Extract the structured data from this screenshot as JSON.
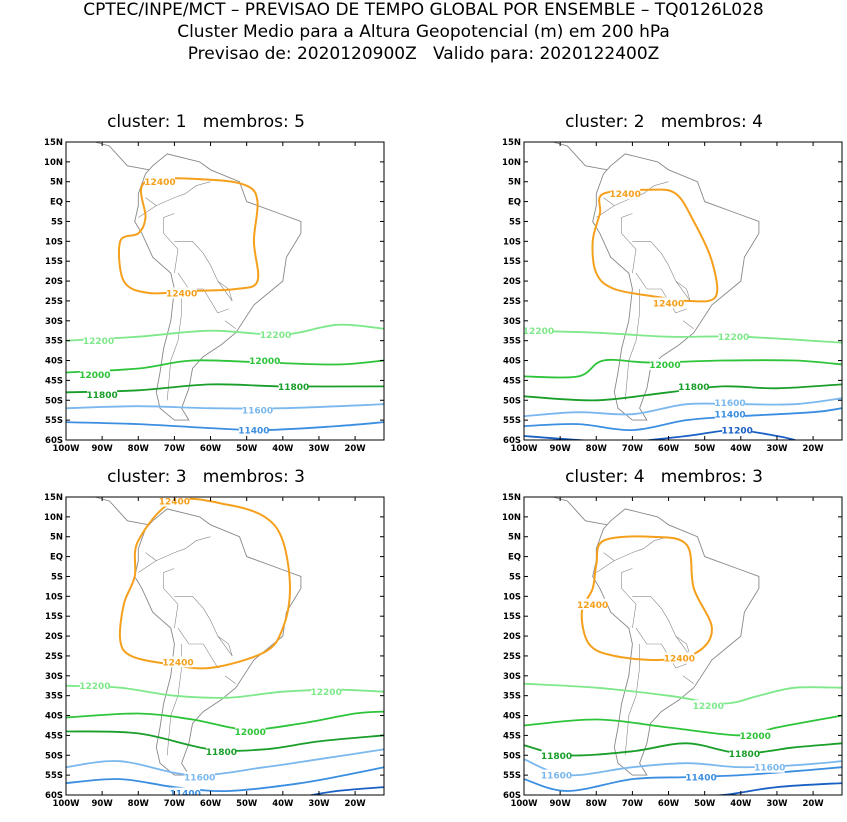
{
  "header": {
    "line1": "CPTEC/INPE/MCT – PREVISAO DE TEMPO GLOBAL POR ENSEMBLE – TQ0126L028",
    "line2": "Cluster Medio para a Altura Geopotencial (m) em 200 hPa",
    "line3": "Previsao de: 2020120900Z   Valido para: 2020122400Z"
  },
  "axes": {
    "lat_labels": [
      "15N",
      "10N",
      "5N",
      "EQ",
      "5S",
      "10S",
      "15S",
      "20S",
      "25S",
      "30S",
      "35S",
      "40S",
      "45S",
      "50S",
      "55S",
      "60S"
    ],
    "lon_labels": [
      "100W",
      "90W",
      "80W",
      "70W",
      "60W",
      "50W",
      "40W",
      "30W",
      "20W"
    ]
  },
  "colors": {
    "c12400": "#f5a01c",
    "c12200": "#7ee88a",
    "c12000": "#2ec43a",
    "c11800": "#1a9e2a",
    "c11600": "#7ab8ee",
    "c11400": "#3b8ee0",
    "c11200": "#1a5fc4",
    "land": "#888888"
  },
  "panels": [
    {
      "title": "cluster: 1   membros: 5",
      "labels": [
        {
          "text": "12400",
          "color": "c12400",
          "lon": -74,
          "lat": 5
        },
        {
          "text": "12400",
          "color": "c12400",
          "lon": -68,
          "lat": -23
        },
        {
          "text": "12200",
          "color": "c12200",
          "lon": -91,
          "lat": -35
        },
        {
          "text": "12200",
          "color": "c12200",
          "lon": -42,
          "lat": -33.5
        },
        {
          "text": "12000",
          "color": "c12000",
          "lon": -92,
          "lat": -43.5
        },
        {
          "text": "12000",
          "color": "c12000",
          "lon": -45,
          "lat": -40
        },
        {
          "text": "11800",
          "color": "c11800",
          "lon": -90,
          "lat": -48.5
        },
        {
          "text": "11800",
          "color": "c11800",
          "lon": -37,
          "lat": -46.5
        },
        {
          "text": "11600",
          "color": "c11600",
          "lon": -47,
          "lat": -52.5
        },
        {
          "text": "11400",
          "color": "c11400",
          "lon": -48,
          "lat": -57.5
        }
      ]
    },
    {
      "title": "cluster: 2   membros: 4",
      "labels": [
        {
          "text": "12400",
          "color": "c12400",
          "lon": -72,
          "lat": 2
        },
        {
          "text": "12400",
          "color": "c12400",
          "lon": -60,
          "lat": -25.5
        },
        {
          "text": "12200",
          "color": "c12200",
          "lon": -96,
          "lat": -32.5
        },
        {
          "text": "12200",
          "color": "c12200",
          "lon": -42,
          "lat": -34
        },
        {
          "text": "12000",
          "color": "c12000",
          "lon": -61,
          "lat": -41
        },
        {
          "text": "11800",
          "color": "c11800",
          "lon": -53,
          "lat": -46.5
        },
        {
          "text": "11600",
          "color": "c11600",
          "lon": -43,
          "lat": -50.5
        },
        {
          "text": "11400",
          "color": "c11400",
          "lon": -43,
          "lat": -53.5
        },
        {
          "text": "11200",
          "color": "c11200",
          "lon": -41,
          "lat": -57.5
        }
      ]
    },
    {
      "title": "cluster: 3   membros: 3",
      "labels": [
        {
          "text": "12400",
          "color": "c12400",
          "lon": -70,
          "lat": 14
        },
        {
          "text": "12400",
          "color": "c12400",
          "lon": -69,
          "lat": -26.5
        },
        {
          "text": "12200",
          "color": "c12200",
          "lon": -92,
          "lat": -32.5
        },
        {
          "text": "12200",
          "color": "c12200",
          "lon": -28,
          "lat": -34
        },
        {
          "text": "12000",
          "color": "c12000",
          "lon": -49,
          "lat": -44
        },
        {
          "text": "11800",
          "color": "c11800",
          "lon": -57,
          "lat": -49
        },
        {
          "text": "11600",
          "color": "c11600",
          "lon": -63,
          "lat": -55.5
        },
        {
          "text": "11400",
          "color": "c11400",
          "lon": -67,
          "lat": -59.5
        }
      ]
    },
    {
      "title": "cluster: 4   membros: 3",
      "labels": [
        {
          "text": "12400",
          "color": "c12400",
          "lon": -81,
          "lat": -12
        },
        {
          "text": "12400",
          "color": "c12400",
          "lon": -57,
          "lat": -25.5
        },
        {
          "text": "12200",
          "color": "c12200",
          "lon": -49,
          "lat": -37.5
        },
        {
          "text": "12000",
          "color": "c12000",
          "lon": -36,
          "lat": -45
        },
        {
          "text": "11800",
          "color": "c11800",
          "lon": -91,
          "lat": -50
        },
        {
          "text": "11800",
          "color": "c11800",
          "lon": -39,
          "lat": -49.5
        },
        {
          "text": "11600",
          "color": "c11600",
          "lon": -91,
          "lat": -55
        },
        {
          "text": "11600",
          "color": "c11600",
          "lon": -32,
          "lat": -53
        },
        {
          "text": "11400",
          "color": "c11400",
          "lon": -51,
          "lat": -55.5
        }
      ]
    }
  ]
}
